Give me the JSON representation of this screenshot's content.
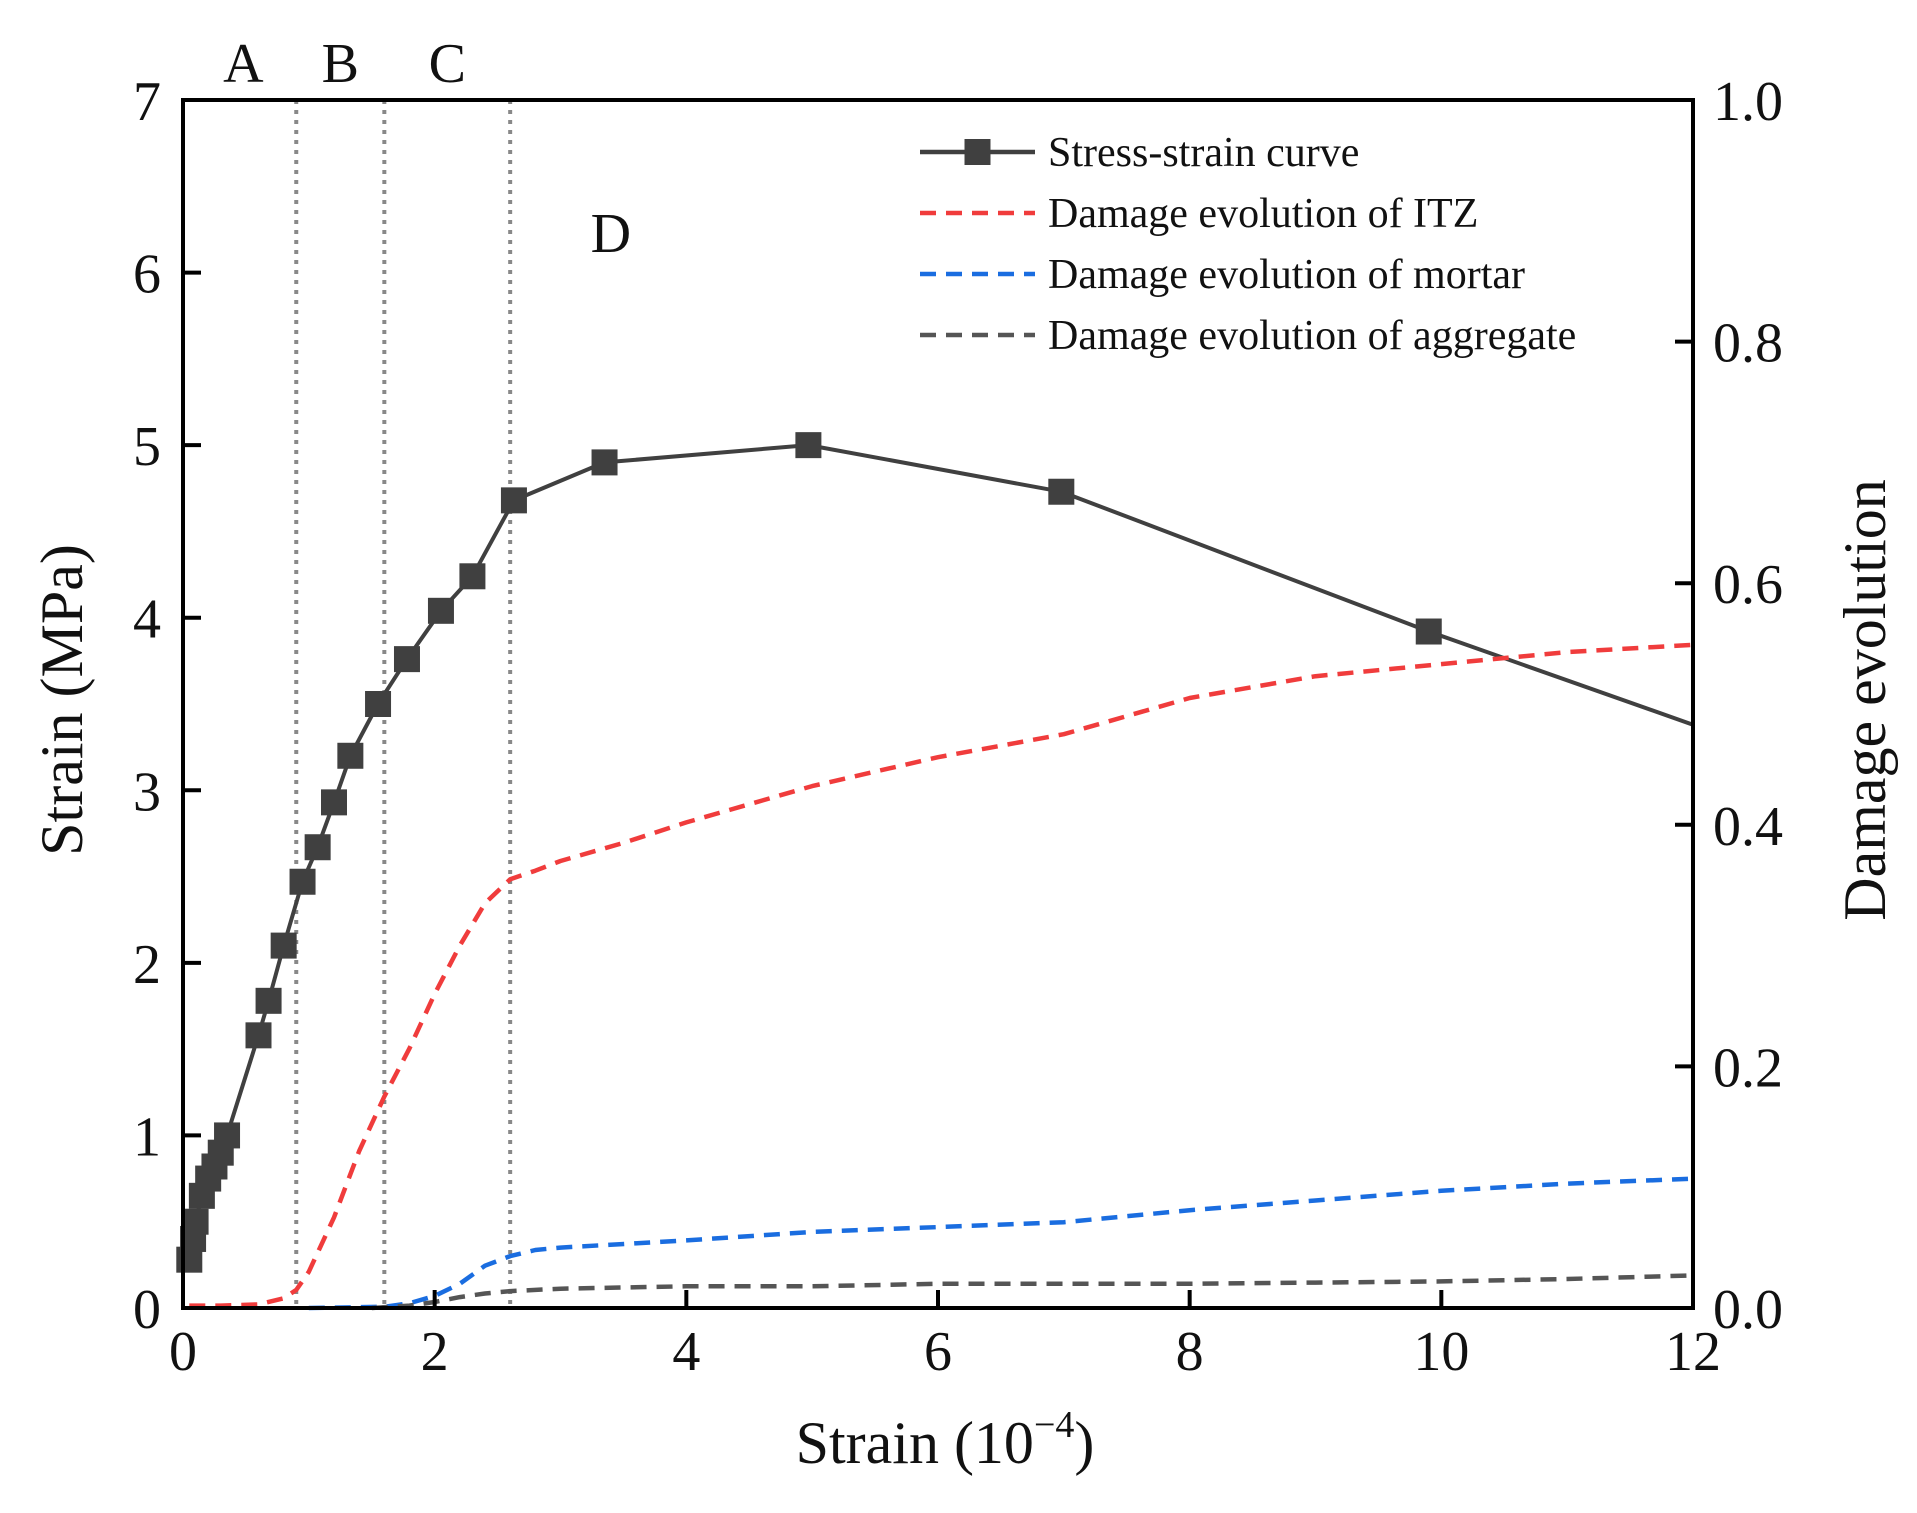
{
  "chart_data": {
    "type": "line",
    "xlabel_main": "Strain (10",
    "xlabel_sup": "−4",
    "xlabel_close": ")",
    "ylabel_left": "Strain (MPa)",
    "ylabel_right": "Damage evolution",
    "xlim": [
      0,
      12
    ],
    "ylim_left": [
      0,
      7
    ],
    "ylim_right": [
      0,
      1
    ],
    "x_ticks": [
      0,
      2,
      4,
      6,
      8,
      10,
      12
    ],
    "y_left_ticks": [
      0,
      1,
      2,
      3,
      4,
      5,
      6,
      7
    ],
    "y_right_ticks": [
      "0.0",
      "0.2",
      "0.4",
      "0.6",
      "0.8",
      "1.0"
    ],
    "stage_boundaries": [
      0.9,
      1.6,
      2.6
    ],
    "stage_labels": [
      {
        "text": "A",
        "x": 0.48,
        "pos": "top"
      },
      {
        "text": "B",
        "x": 1.25,
        "pos": "top"
      },
      {
        "text": "C",
        "x": 2.1,
        "pos": "top"
      },
      {
        "text": "D",
        "x": 3.4,
        "pos": "inside"
      }
    ],
    "series": [
      {
        "name": "Stress-strain curve",
        "axis": "left",
        "style": "solid-square",
        "color": "#404040",
        "x": [
          0.05,
          0.08,
          0.1,
          0.15,
          0.2,
          0.25,
          0.3,
          0.35,
          0.6,
          0.68,
          0.8,
          0.95,
          1.07,
          1.2,
          1.33,
          1.55,
          1.78,
          2.05,
          2.3,
          2.63,
          3.35,
          4.97,
          6.98,
          9.9,
          12.0
        ],
        "y": [
          0.28,
          0.4,
          0.5,
          0.65,
          0.75,
          0.82,
          0.9,
          1.0,
          1.58,
          1.78,
          2.1,
          2.47,
          2.67,
          2.93,
          3.2,
          3.5,
          3.76,
          4.04,
          4.24,
          4.68,
          4.9,
          5.0,
          4.73,
          3.92,
          3.38
        ],
        "markers": [
          true,
          true,
          true,
          true,
          true,
          true,
          true,
          true,
          true,
          true,
          true,
          true,
          true,
          true,
          true,
          true,
          true,
          true,
          true,
          true,
          true,
          true,
          true,
          true,
          false
        ]
      },
      {
        "name": "Damage evolution of ITZ",
        "axis": "right",
        "style": "dashed",
        "color": "#f03c3c",
        "x": [
          0.05,
          0.3,
          0.6,
          0.8,
          0.9,
          1.0,
          1.2,
          1.4,
          1.6,
          1.8,
          2.0,
          2.2,
          2.4,
          2.6,
          2.8,
          3.0,
          3.5,
          4.0,
          5.0,
          6.0,
          7.0,
          8.0,
          9.0,
          10.0,
          11.0,
          12.0
        ],
        "y": [
          0.002,
          0.002,
          0.003,
          0.008,
          0.015,
          0.03,
          0.075,
          0.13,
          0.175,
          0.215,
          0.26,
          0.3,
          0.335,
          0.355,
          0.362,
          0.37,
          0.385,
          0.402,
          0.432,
          0.456,
          0.475,
          0.505,
          0.523,
          0.533,
          0.543,
          0.549
        ]
      },
      {
        "name": "Damage evolution of mortar",
        "axis": "right",
        "style": "dashed",
        "color": "#1a6de0",
        "x": [
          1.0,
          1.6,
          1.8,
          2.0,
          2.2,
          2.4,
          2.6,
          2.8,
          3.0,
          4.0,
          5.0,
          6.0,
          7.0,
          8.0,
          9.0,
          10.0,
          11.0,
          12.0
        ],
        "y": [
          0.0,
          0.001,
          0.004,
          0.01,
          0.02,
          0.035,
          0.043,
          0.048,
          0.05,
          0.056,
          0.063,
          0.067,
          0.071,
          0.081,
          0.089,
          0.097,
          0.103,
          0.107
        ]
      },
      {
        "name": "Damage evolution of aggregate",
        "axis": "right",
        "style": "dashed",
        "color": "#555555",
        "x": [
          1.5,
          1.8,
          2.0,
          2.2,
          2.4,
          2.6,
          3.0,
          4.0,
          5.0,
          6.0,
          7.0,
          8.0,
          9.0,
          10.0,
          11.0,
          12.0
        ],
        "y": [
          0.0,
          0.002,
          0.005,
          0.009,
          0.012,
          0.014,
          0.016,
          0.018,
          0.018,
          0.02,
          0.02,
          0.02,
          0.021,
          0.022,
          0.024,
          0.027
        ]
      }
    ],
    "legend_position": "top-right"
  }
}
